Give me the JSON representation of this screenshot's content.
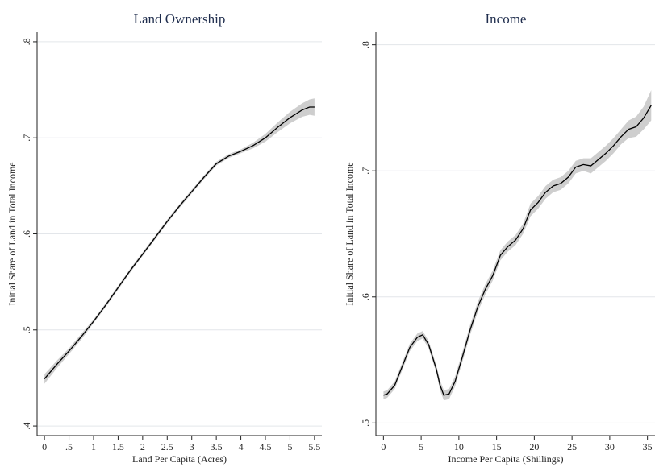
{
  "chart_data": [
    {
      "type": "line",
      "title": "Land Ownership",
      "xlabel": "Land Per Capita (Acres)",
      "ylabel": "Initial Share of Land in Total Income",
      "xlim": [
        -0.15,
        5.65
      ],
      "ylim": [
        0.39,
        0.81
      ],
      "x_ticks": [
        0,
        0.5,
        1,
        1.5,
        2,
        2.5,
        3,
        3.5,
        4,
        4.5,
        5,
        5.5
      ],
      "x_tick_labels": [
        "0",
        ".5",
        "1",
        "1.5",
        "2",
        "2.5",
        "3",
        "3.5",
        "4",
        "4.5",
        "5",
        "5.5"
      ],
      "y_ticks": [
        0.4,
        0.5,
        0.6,
        0.7,
        0.8
      ],
      "y_tick_labels": [
        ".4",
        ".5",
        ".6",
        ".7",
        ".8"
      ],
      "grid": true,
      "series": [
        {
          "x": [
            0,
            0.25,
            0.5,
            0.75,
            1,
            1.25,
            1.5,
            1.75,
            2,
            2.25,
            2.5,
            2.75,
            3,
            3.25,
            3.5,
            3.75,
            4,
            4.25,
            4.5,
            4.75,
            5,
            5.25,
            5.4,
            5.5
          ],
          "y": [
            0.449,
            0.464,
            0.478,
            0.493,
            0.509,
            0.526,
            0.544,
            0.562,
            0.579,
            0.596,
            0.613,
            0.629,
            0.644,
            0.659,
            0.673,
            0.681,
            0.686,
            0.692,
            0.7,
            0.711,
            0.721,
            0.729,
            0.732,
            0.732
          ],
          "lower": [
            0.444,
            0.46,
            0.475,
            0.49,
            0.507,
            0.524,
            0.542,
            0.56,
            0.577,
            0.594,
            0.611,
            0.627,
            0.642,
            0.657,
            0.671,
            0.679,
            0.684,
            0.689,
            0.696,
            0.706,
            0.715,
            0.722,
            0.724,
            0.723
          ],
          "upper": [
            0.454,
            0.468,
            0.481,
            0.496,
            0.511,
            0.528,
            0.546,
            0.564,
            0.581,
            0.598,
            0.615,
            0.631,
            0.646,
            0.661,
            0.675,
            0.683,
            0.688,
            0.695,
            0.704,
            0.716,
            0.727,
            0.736,
            0.74,
            0.741
          ]
        }
      ]
    },
    {
      "type": "line",
      "title": "Income",
      "xlabel": "Income Per Capita (Shillings)",
      "ylabel": "Initial Share of Land in Total Income",
      "xlim": [
        -1,
        36
      ],
      "ylim": [
        0.49,
        0.81
      ],
      "x_ticks": [
        0,
        5,
        10,
        15,
        20,
        25,
        30,
        35
      ],
      "x_tick_labels": [
        "0",
        "5",
        "10",
        "15",
        "20",
        "25",
        "30",
        "35"
      ],
      "y_ticks": [
        0.5,
        0.6,
        0.7,
        0.8
      ],
      "y_tick_labels": [
        ".5",
        ".6",
        ".7",
        ".8"
      ],
      "grid": true,
      "series": [
        {
          "x": [
            0,
            0.5,
            1.5,
            2.5,
            3.5,
            4.5,
            5.2,
            6,
            7,
            7.5,
            8,
            8.7,
            9.5,
            10.5,
            11.5,
            12.5,
            13.5,
            14.5,
            15.5,
            16.5,
            17.5,
            18.5,
            19.5,
            20.5,
            21.5,
            22.5,
            23.5,
            24.5,
            25.5,
            26.5,
            27.5,
            28.5,
            29.5,
            30.5,
            31.5,
            32.5,
            33.5,
            34.5,
            35.5
          ],
          "y": [
            0.522,
            0.523,
            0.53,
            0.545,
            0.56,
            0.568,
            0.57,
            0.562,
            0.543,
            0.53,
            0.522,
            0.523,
            0.533,
            0.553,
            0.574,
            0.592,
            0.606,
            0.617,
            0.633,
            0.64,
            0.645,
            0.654,
            0.669,
            0.675,
            0.683,
            0.688,
            0.69,
            0.695,
            0.703,
            0.705,
            0.704,
            0.709,
            0.714,
            0.72,
            0.727,
            0.733,
            0.735,
            0.742,
            0.752
          ],
          "lower": [
            0.519,
            0.52,
            0.527,
            0.542,
            0.557,
            0.565,
            0.567,
            0.559,
            0.54,
            0.526,
            0.518,
            0.519,
            0.529,
            0.549,
            0.57,
            0.588,
            0.602,
            0.613,
            0.629,
            0.636,
            0.641,
            0.65,
            0.664,
            0.67,
            0.678,
            0.683,
            0.685,
            0.69,
            0.698,
            0.7,
            0.698,
            0.703,
            0.708,
            0.714,
            0.721,
            0.726,
            0.727,
            0.733,
            0.74
          ],
          "upper": [
            0.525,
            0.526,
            0.533,
            0.548,
            0.563,
            0.571,
            0.573,
            0.565,
            0.546,
            0.534,
            0.526,
            0.527,
            0.537,
            0.557,
            0.578,
            0.596,
            0.61,
            0.621,
            0.637,
            0.644,
            0.649,
            0.658,
            0.674,
            0.68,
            0.688,
            0.693,
            0.695,
            0.7,
            0.708,
            0.71,
            0.71,
            0.715,
            0.72,
            0.726,
            0.733,
            0.74,
            0.743,
            0.751,
            0.764
          ]
        }
      ]
    }
  ]
}
